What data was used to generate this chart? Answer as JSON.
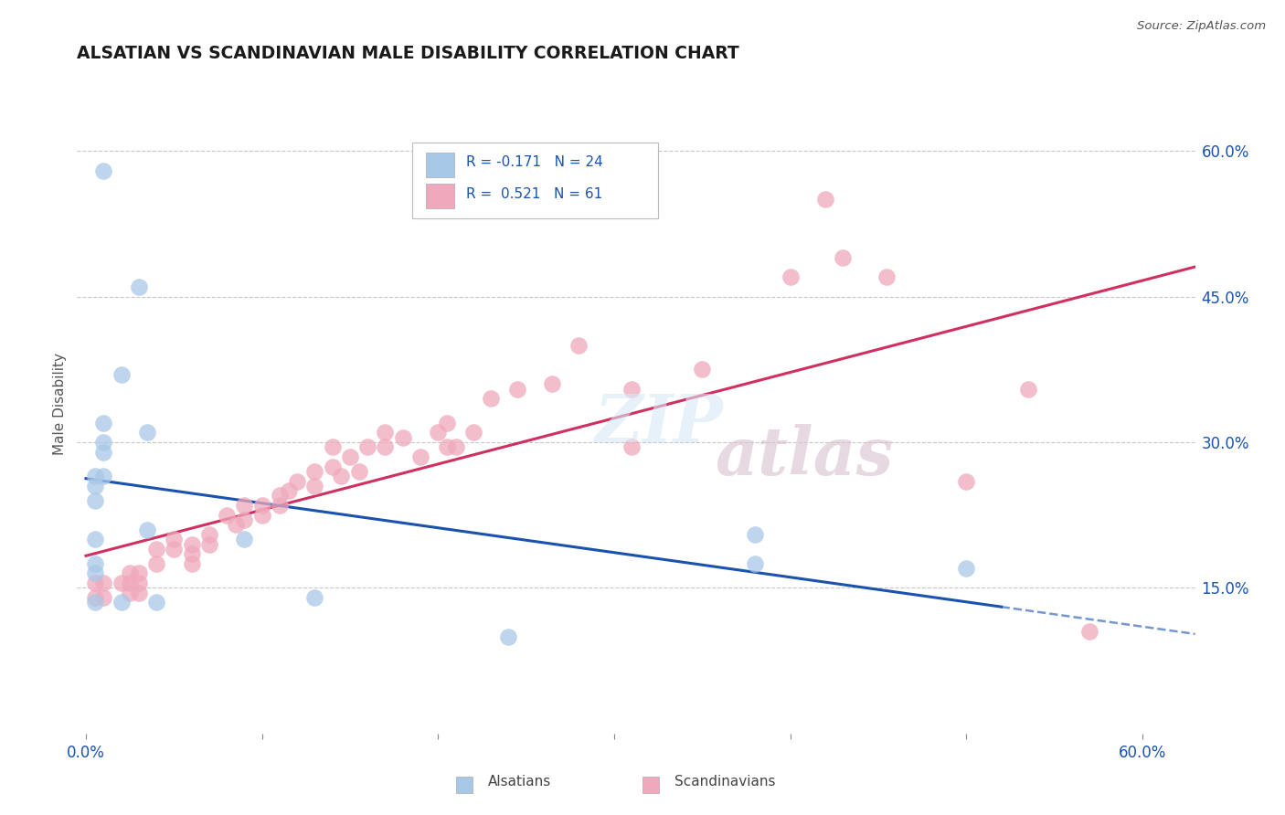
{
  "title": "ALSATIAN VS SCANDINAVIAN MALE DISABILITY CORRELATION CHART",
  "source": "Source: ZipAtlas.com",
  "ylabel": "Male Disability",
  "xlim": [
    -0.005,
    0.63
  ],
  "ylim": [
    0.0,
    0.68
  ],
  "grid_color": "#c8c8c8",
  "background_color": "#ffffff",
  "alsatian_color": "#a8c8e8",
  "scandinavian_color": "#f0a8bc",
  "alsatian_line_color": "#1a52b0",
  "scandinavian_line_color": "#d03060",
  "alsatian_R": -0.171,
  "alsatian_N": 24,
  "scandinavian_R": 0.521,
  "scandinavian_N": 61,
  "legend_color": "#1a52b0",
  "alsatian_x": [
    0.01,
    0.03,
    0.02,
    0.035,
    0.01,
    0.01,
    0.01,
    0.01,
    0.005,
    0.005,
    0.005,
    0.005,
    0.005,
    0.005,
    0.005,
    0.02,
    0.04,
    0.035,
    0.09,
    0.38,
    0.38,
    0.5,
    0.13,
    0.24
  ],
  "alsatian_y": [
    0.58,
    0.46,
    0.37,
    0.31,
    0.32,
    0.3,
    0.29,
    0.265,
    0.265,
    0.255,
    0.24,
    0.2,
    0.175,
    0.165,
    0.135,
    0.135,
    0.135,
    0.21,
    0.2,
    0.205,
    0.175,
    0.17,
    0.14,
    0.1
  ],
  "scandinavian_x": [
    0.005,
    0.005,
    0.01,
    0.01,
    0.02,
    0.025,
    0.025,
    0.025,
    0.03,
    0.03,
    0.03,
    0.04,
    0.04,
    0.05,
    0.05,
    0.06,
    0.06,
    0.06,
    0.07,
    0.07,
    0.08,
    0.085,
    0.09,
    0.09,
    0.1,
    0.1,
    0.11,
    0.11,
    0.115,
    0.12,
    0.13,
    0.13,
    0.14,
    0.145,
    0.14,
    0.15,
    0.155,
    0.16,
    0.17,
    0.17,
    0.18,
    0.19,
    0.2,
    0.205,
    0.205,
    0.21,
    0.22,
    0.23,
    0.245,
    0.265,
    0.28,
    0.31,
    0.31,
    0.35,
    0.4,
    0.42,
    0.43,
    0.455,
    0.5,
    0.535,
    0.57
  ],
  "scandinavian_y": [
    0.155,
    0.14,
    0.155,
    0.14,
    0.155,
    0.165,
    0.155,
    0.145,
    0.165,
    0.155,
    0.145,
    0.19,
    0.175,
    0.2,
    0.19,
    0.195,
    0.185,
    0.175,
    0.205,
    0.195,
    0.225,
    0.215,
    0.235,
    0.22,
    0.235,
    0.225,
    0.245,
    0.235,
    0.25,
    0.26,
    0.27,
    0.255,
    0.275,
    0.265,
    0.295,
    0.285,
    0.27,
    0.295,
    0.295,
    0.31,
    0.305,
    0.285,
    0.31,
    0.32,
    0.295,
    0.295,
    0.31,
    0.345,
    0.355,
    0.36,
    0.4,
    0.295,
    0.355,
    0.375,
    0.47,
    0.55,
    0.49,
    0.47,
    0.26,
    0.355,
    0.105
  ]
}
